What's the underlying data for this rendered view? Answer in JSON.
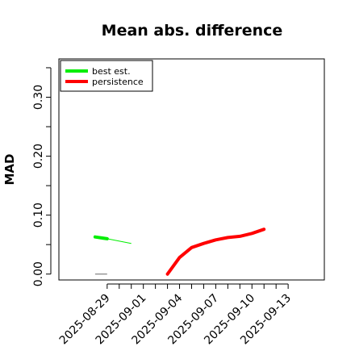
{
  "chart_data": {
    "type": "line",
    "title": "Mean abs. difference",
    "ylabel": "MAD",
    "xlabel": "",
    "xlim": [
      "2025-08-25",
      "2025-09-16"
    ],
    "ylim": [
      -0.01,
      0.365
    ],
    "y_ticks": [
      0.0,
      0.05,
      0.1,
      0.15,
      0.2,
      0.25,
      0.3,
      0.35
    ],
    "y_tick_labels": [
      {
        "value": 0.0,
        "label": "0.00"
      },
      {
        "value": 0.1,
        "label": "0.10"
      },
      {
        "value": 0.2,
        "label": "0.20"
      },
      {
        "value": 0.3,
        "label": "0.30"
      }
    ],
    "x_tick_labels": [
      "2025-08-29",
      "2025-09-01",
      "2025-09-04",
      "2025-09-07",
      "2025-09-10",
      "2025-09-13"
    ],
    "legend": {
      "position": "top-left",
      "entries": [
        "best est.",
        "persistence"
      ]
    },
    "grid": false,
    "series": [
      {
        "name": "best est.",
        "color": "#00ee00",
        "points": [
          [
            "2025-08-28",
            0.063
          ],
          [
            "2025-08-29",
            0.06
          ]
        ],
        "thin_points": [
          [
            "2025-08-29",
            0.06
          ],
          [
            "2025-08-31",
            0.052
          ]
        ]
      },
      {
        "name": "persistence",
        "color": "#ff0000",
        "points": [
          [
            "2025-09-03",
            0.0
          ],
          [
            "2025-09-04",
            0.028
          ],
          [
            "2025-09-05",
            0.045
          ],
          [
            "2025-09-06",
            0.052
          ],
          [
            "2025-09-07",
            0.058
          ],
          [
            "2025-09-08",
            0.062
          ],
          [
            "2025-09-09",
            0.064
          ],
          [
            "2025-09-10",
            0.069
          ],
          [
            "2025-09-11",
            0.076
          ]
        ]
      }
    ],
    "extra_marks": [
      {
        "color": "#808080",
        "points": [
          [
            "2025-08-28",
            0.0
          ],
          [
            "2025-08-29",
            0.0
          ]
        ]
      }
    ]
  }
}
